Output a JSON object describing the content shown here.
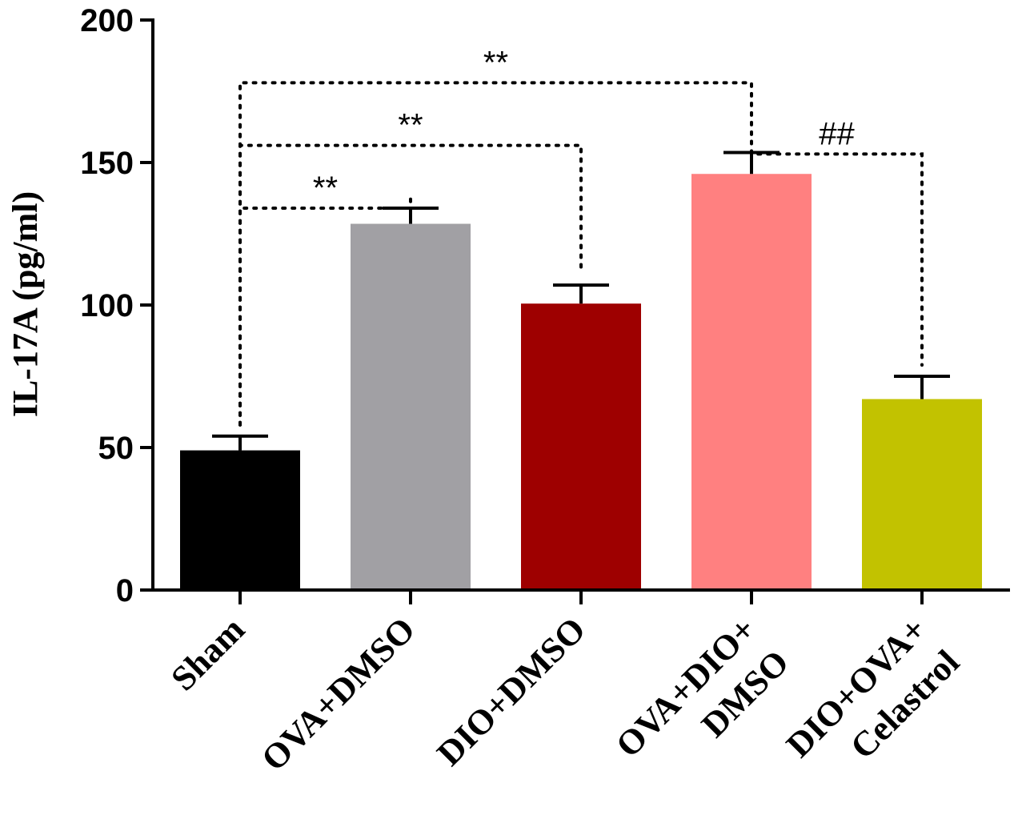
{
  "chart_data": {
    "type": "bar",
    "title": "",
    "xlabel": "",
    "ylabel": "IL-17A (pg/ml)",
    "ylim": [
      0,
      200
    ],
    "yticks": [
      0,
      50,
      100,
      150,
      200
    ],
    "grid": false,
    "categories": [
      [
        "Sham"
      ],
      [
        "OVA+DMSO"
      ],
      [
        "DIO+DMSO"
      ],
      [
        "OVA+DIO+",
        "DMSO"
      ],
      [
        "DIO+OVA+",
        "Celastrol"
      ]
    ],
    "values": [
      49,
      128.5,
      100.5,
      146,
      67
    ],
    "errors": [
      5,
      5.5,
      6.5,
      7.5,
      8
    ],
    "colors": [
      "#000000",
      "#a1a0a4",
      "#9e0000",
      "#ff8080",
      "#c2c200"
    ],
    "significance": [
      {
        "from": 0,
        "to": 1,
        "level": 134,
        "label": "**"
      },
      {
        "from": 0,
        "to": 2,
        "level": 156,
        "label": "**"
      },
      {
        "from": 0,
        "to": 3,
        "level": 178,
        "label": "**"
      },
      {
        "from": 3,
        "to": 4,
        "level": 153,
        "label": "##"
      }
    ]
  }
}
